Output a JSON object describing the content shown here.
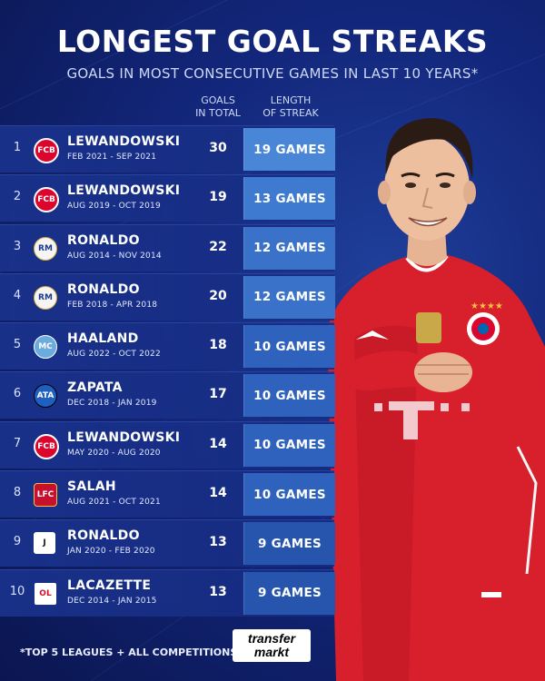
{
  "title": "LONGEST GOAL STREAKS",
  "subtitle": "GOALS IN MOST CONSECUTIVE GAMES IN LAST 10 YEARS*",
  "columns": {
    "goals_line1": "GOALS",
    "goals_line2": "IN TOTAL",
    "length_line1": "LENGTH",
    "length_line2": "OF STREAK"
  },
  "rows": [
    {
      "rank": "1",
      "badge": "FCB",
      "badge_class": "fcb",
      "name": "LEWANDOWSKI",
      "period": "FEB 2021 - SEP 2021",
      "goals": "30",
      "streak": "19 GAMES",
      "streak_color": "#4a86d8"
    },
    {
      "rank": "2",
      "badge": "FCB",
      "badge_class": "fcb",
      "name": "LEWANDOWSKI",
      "period": "AUG 2019 - OCT 2019",
      "goals": "19",
      "streak": "13 GAMES",
      "streak_color": "#3f7ad1"
    },
    {
      "rank": "3",
      "badge": "RM",
      "badge_class": "rma",
      "name": "RONALDO",
      "period": "AUG 2014 - NOV 2014",
      "goals": "22",
      "streak": "12 GAMES",
      "streak_color": "#3a72ca"
    },
    {
      "rank": "4",
      "badge": "RM",
      "badge_class": "rma",
      "name": "RONALDO",
      "period": "FEB 2018 - APR 2018",
      "goals": "20",
      "streak": "12 GAMES",
      "streak_color": "#3a72ca"
    },
    {
      "rank": "5",
      "badge": "MC",
      "badge_class": "mci",
      "name": "HAALAND",
      "period": "AUG 2022 - OCT 2022",
      "goals": "18",
      "streak": "10 GAMES",
      "streak_color": "#2f62bd"
    },
    {
      "rank": "6",
      "badge": "ATA",
      "badge_class": "ata",
      "name": "ZAPATA",
      "period": "DEC 2018 - JAN 2019",
      "goals": "17",
      "streak": "10 GAMES",
      "streak_color": "#2f62bd"
    },
    {
      "rank": "7",
      "badge": "FCB",
      "badge_class": "fcb",
      "name": "LEWANDOWSKI",
      "period": "MAY 2020 - AUG 2020",
      "goals": "14",
      "streak": "10 GAMES",
      "streak_color": "#2f62bd"
    },
    {
      "rank": "8",
      "badge": "LFC",
      "badge_class": "liv",
      "name": "SALAH",
      "period": "AUG 2021 - OCT 2021",
      "goals": "14",
      "streak": "10 GAMES",
      "streak_color": "#2f62bd"
    },
    {
      "rank": "9",
      "badge": "J",
      "badge_class": "juv",
      "name": "RONALDO",
      "period": "JAN 2020 - FEB 2020",
      "goals": "13",
      "streak": "9 GAMES",
      "streak_color": "#2755ad"
    },
    {
      "rank": "10",
      "badge": "OL",
      "badge_class": "ol",
      "name": "LACAZETTE",
      "period": "DEC 2014 - JAN 2015",
      "goals": "13",
      "streak": "9 GAMES",
      "streak_color": "#2755ad"
    }
  ],
  "footnote": "*TOP 5 LEAGUES + ALL COMPETITIONS",
  "logo": {
    "line1": "transfer",
    "line2": "markt"
  },
  "colors": {
    "background": "#12267a",
    "jersey": "#dc1f2e",
    "streak_accent": "#4a86d8"
  }
}
